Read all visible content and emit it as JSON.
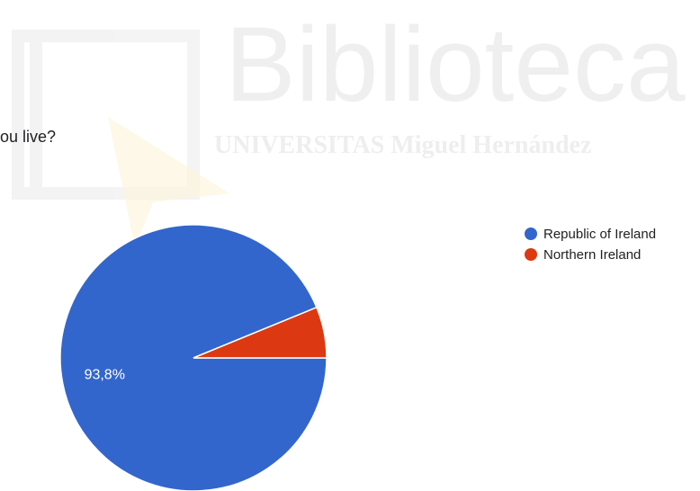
{
  "question": {
    "text": "ou live?"
  },
  "watermark": {
    "title": "Biblioteca",
    "subtitle": "UNIVERSITAS Miguel Hernández"
  },
  "chart_data": {
    "type": "pie",
    "categories": [
      "Republic of Ireland",
      "Northern Ireland"
    ],
    "values": [
      93.8,
      6.2
    ],
    "colors": [
      "#3366cc",
      "#dc3912"
    ],
    "data_labels": [
      "93,8%",
      ""
    ],
    "legend_position": "right"
  }
}
